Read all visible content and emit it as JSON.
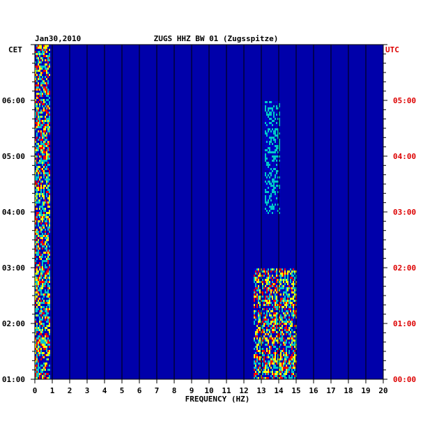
{
  "chart_data": {
    "type": "heatmap",
    "date": "Jan30,2010",
    "title": "ZUGS HHZ BW 01 (Zugsspitze)",
    "xlabel": "FREQUENCY (HZ)",
    "xlim": [
      0,
      20
    ],
    "x_ticks": [
      "0",
      "1",
      "2",
      "3",
      "4",
      "5",
      "6",
      "7",
      "8",
      "9",
      "10",
      "11",
      "12",
      "13",
      "14",
      "15",
      "16",
      "17",
      "18",
      "19",
      "20"
    ],
    "left_axis_label": "CET",
    "left_ticks": [
      "06:00",
      "05:00",
      "04:00",
      "03:00",
      "02:00",
      "01:00"
    ],
    "right_axis_label": "UTC",
    "right_ticks": [
      "05:00",
      "04:00",
      "03:00",
      "02:00",
      "01:00",
      "00:00"
    ],
    "time_range_cet": [
      "01:00",
      "07:00"
    ],
    "colors": {
      "background": "#0000aa",
      "low": "#0000c8",
      "mid": "#00c8c8",
      "high": "#ffff00",
      "peak": "#ff0000",
      "right_axis_text": "#dd0000"
    },
    "energy_bands": [
      {
        "freq_hz": [
          0.0,
          0.8
        ],
        "level": "high",
        "note": "continuous"
      },
      {
        "freq_hz": [
          12.5,
          15.0
        ],
        "level": "high",
        "cet": [
          "01:00",
          "03:00"
        ]
      },
      {
        "freq_hz": [
          13.2,
          14.0
        ],
        "level": "mid",
        "cet": [
          "04:00",
          "06:00"
        ]
      }
    ]
  }
}
